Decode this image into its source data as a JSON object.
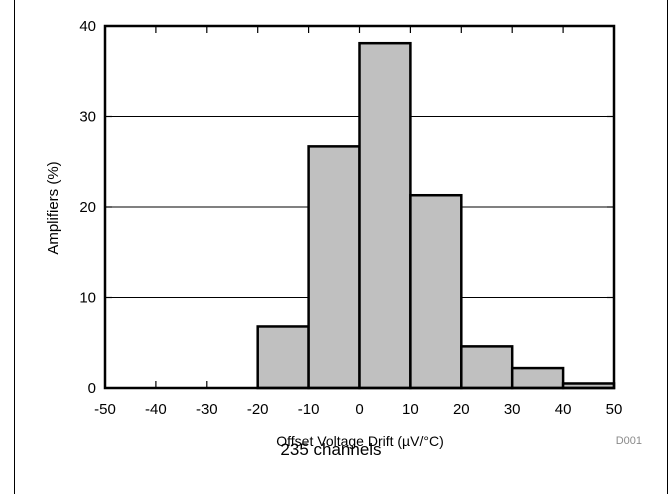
{
  "chart_data": {
    "type": "histogram",
    "xlabel": "Offset Voltage Drift (µV/°C)",
    "ylabel": "Amplifiers (%)",
    "xlim": [
      -50,
      50
    ],
    "ylim": [
      0,
      40
    ],
    "x_ticks": [
      "-50",
      "-40",
      "-30",
      "-20",
      "-10",
      "0",
      "10",
      "20",
      "30",
      "40",
      "50"
    ],
    "y_ticks": [
      "0",
      "10",
      "20",
      "30",
      "40"
    ],
    "bins": [
      {
        "from": -20,
        "to": -10,
        "value": 6.8
      },
      {
        "from": -10,
        "to": 0,
        "value": 26.7
      },
      {
        "from": 0,
        "to": 10,
        "value": 38.1
      },
      {
        "from": 10,
        "to": 20,
        "value": 21.3
      },
      {
        "from": 20,
        "to": 30,
        "value": 4.6
      },
      {
        "from": 30,
        "to": 40,
        "value": 2.2
      },
      {
        "from": 40,
        "to": 50,
        "value": 0.5
      }
    ],
    "grid": "horizontal",
    "bar_color": "#c0c0c0",
    "tag": "D001"
  },
  "note": "235 channels"
}
